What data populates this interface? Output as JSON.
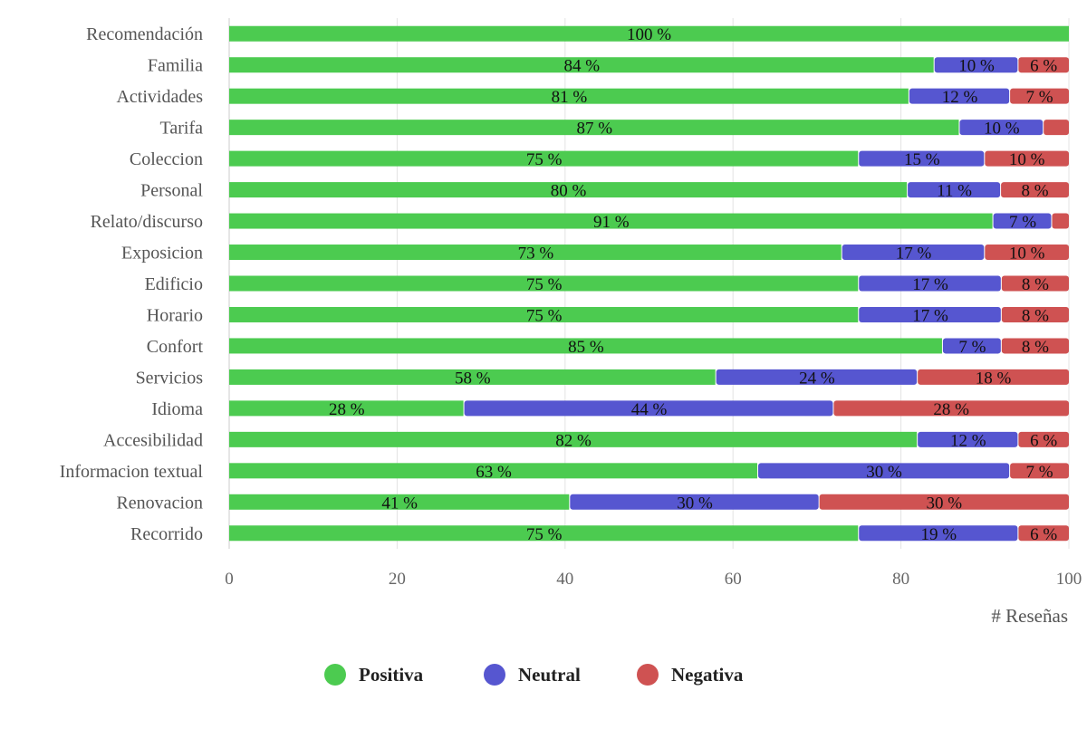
{
  "chart_data": {
    "type": "bar",
    "orientation": "horizontal",
    "stacked": true,
    "title": "",
    "xlabel": "# Reseñas",
    "ylabel": "",
    "xlim": [
      0,
      100
    ],
    "xticks": [
      0,
      20,
      40,
      60,
      80,
      100
    ],
    "grid": true,
    "legend_position": "bottom",
    "categories": [
      "Recomendación",
      "Familia",
      "Actividades",
      "Tarifa",
      "Coleccion",
      "Personal",
      "Relato/discurso",
      "Exposicion",
      "Edificio",
      "Horario",
      "Confort",
      "Servicios",
      "Idioma",
      "Accesibilidad",
      "Informacion textual",
      "Renovacion",
      "Recorrido"
    ],
    "series": [
      {
        "name": "Positiva",
        "color": "#4ccb50",
        "values": [
          100,
          84,
          81,
          87,
          75,
          80,
          91,
          73,
          75,
          75,
          85,
          58,
          28,
          82,
          63,
          41,
          75
        ],
        "labels": [
          "100 %",
          "84 %",
          "81 %",
          "87 %",
          "75 %",
          "80 %",
          "91 %",
          "73 %",
          "75 %",
          "75 %",
          "85 %",
          "58 %",
          "28 %",
          "82 %",
          "63 %",
          "41 %",
          "75 %"
        ]
      },
      {
        "name": "Neutral",
        "color": "#5656d0",
        "values": [
          0,
          10,
          12,
          10,
          15,
          11,
          7,
          17,
          17,
          17,
          7,
          24,
          44,
          12,
          30,
          30,
          19
        ],
        "labels": [
          "",
          "10 %",
          "12 %",
          "10 %",
          "15 %",
          "11 %",
          "7 %",
          "17 %",
          "17 %",
          "17 %",
          "7 %",
          "24 %",
          "44 %",
          "12 %",
          "30 %",
          "30 %",
          "19 %"
        ]
      },
      {
        "name": "Negativa",
        "color": "#cf5252",
        "values": [
          0,
          6,
          7,
          3,
          10,
          8,
          2,
          10,
          8,
          8,
          8,
          18,
          28,
          6,
          7,
          30,
          6
        ],
        "labels": [
          "",
          "6 %",
          "7 %",
          "",
          "10 %",
          "8 %",
          "",
          "10 %",
          "8 %",
          "8 %",
          "8 %",
          "18 %",
          "28 %",
          "6 %",
          "7 %",
          "30 %",
          "6 %"
        ]
      }
    ]
  }
}
